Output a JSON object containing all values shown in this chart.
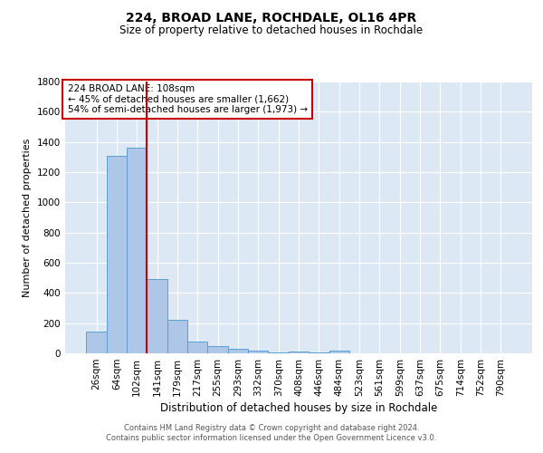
{
  "title": "224, BROAD LANE, ROCHDALE, OL16 4PR",
  "subtitle": "Size of property relative to detached houses in Rochdale",
  "xlabel": "Distribution of detached houses by size in Rochdale",
  "ylabel": "Number of detached properties",
  "categories": [
    "26sqm",
    "64sqm",
    "102sqm",
    "141sqm",
    "179sqm",
    "217sqm",
    "255sqm",
    "293sqm",
    "332sqm",
    "370sqm",
    "408sqm",
    "446sqm",
    "484sqm",
    "523sqm",
    "561sqm",
    "599sqm",
    "637sqm",
    "675sqm",
    "714sqm",
    "752sqm",
    "790sqm"
  ],
  "values": [
    145,
    1310,
    1360,
    490,
    225,
    80,
    48,
    30,
    18,
    5,
    13,
    5,
    18,
    0,
    0,
    0,
    0,
    0,
    0,
    0,
    0
  ],
  "bar_color": "#aec6e8",
  "bar_edge_color": "#5a9fd4",
  "bg_color": "#dde8f5",
  "grid_color": "#ffffff",
  "redline_color": "#cc0000",
  "annotation_text": "224 BROAD LANE: 108sqm\n← 45% of detached houses are smaller (1,662)\n54% of semi-detached houses are larger (1,973) →",
  "annotation_box_color": "#ffffff",
  "annotation_box_edge": "#cc0000",
  "footer_text": "Contains HM Land Registry data © Crown copyright and database right 2024.\nContains public sector information licensed under the Open Government Licence v3.0.",
  "ylim": [
    0,
    1800
  ],
  "yticks": [
    0,
    200,
    400,
    600,
    800,
    1000,
    1200,
    1400,
    1600,
    1800
  ]
}
